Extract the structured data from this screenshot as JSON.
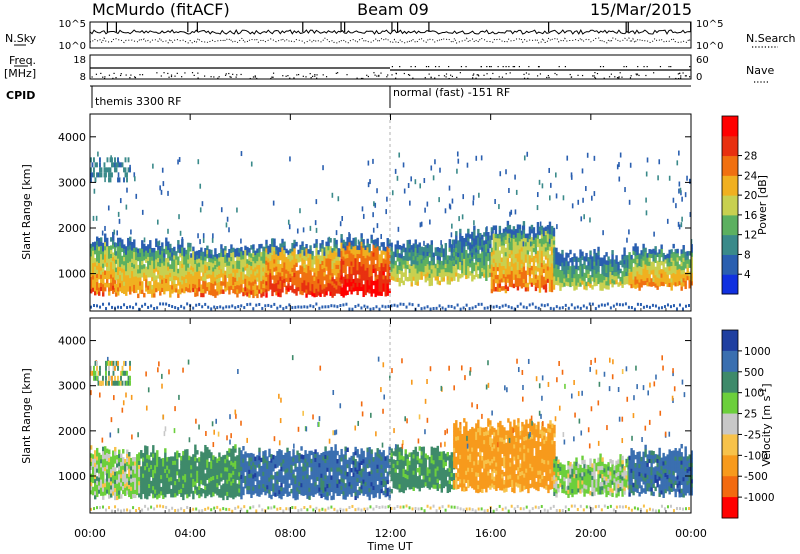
{
  "header": {
    "station": "McMurdo (fitACF)",
    "beam": "Beam 09",
    "date": "15/Mar/2015"
  },
  "top_panel": {
    "nsky_label": "N.Sky",
    "nsky_tick_hi": "10^5",
    "nsky_tick_lo": "10^0",
    "nsearch_label": "N.Search",
    "nsearch_tick_hi": "10^5",
    "nsearch_tick_lo": "10^0",
    "freq_label": "Freq.",
    "freq_unit": "[MHz]",
    "freq_tick_hi": "18",
    "freq_tick_lo": "8",
    "nave_label": "Nave",
    "nave_tick_hi": "60",
    "nave_tick_lo": "0",
    "cpid_label": "CPID",
    "cpid_mode_1": "themis 3300 RF",
    "cpid_mode_2": "normal (fast) -151 RF"
  },
  "chart_data": [
    {
      "type": "heatmap",
      "name": "Power",
      "ylabel": "Slant Range [km]",
      "ylim": [
        180,
        4500
      ],
      "yticks": [
        1000,
        2000,
        3000,
        4000
      ],
      "xlim": [
        0,
        24
      ],
      "xticks": [
        "00:00",
        "04:00",
        "08:00",
        "12:00",
        "16:00",
        "20:00",
        "00:00"
      ],
      "colorbar_label": "Power [dB]",
      "colorbar_ticks": [
        "4",
        "8",
        "12",
        "16",
        "20",
        "24",
        "28"
      ],
      "colorbar_colors": [
        "#1030e0",
        "#2a5fb0",
        "#3a8a8a",
        "#5cb060",
        "#c8d050",
        "#f0b020",
        "#f07010",
        "#e83010",
        "#ff0000"
      ],
      "echo_bands": [
        {
          "t0": 0.0,
          "t1": 1.0,
          "range_lo": 550,
          "range_hi": 1700,
          "mean_db": 20
        },
        {
          "t0": 1.0,
          "t1": 4.0,
          "range_lo": 550,
          "range_hi": 1600,
          "mean_db": 18
        },
        {
          "t0": 4.0,
          "t1": 7.0,
          "range_lo": 550,
          "range_hi": 1500,
          "mean_db": 20
        },
        {
          "t0": 7.0,
          "t1": 10.0,
          "range_lo": 550,
          "range_hi": 1600,
          "mean_db": 24
        },
        {
          "t0": 10.0,
          "t1": 12.0,
          "range_lo": 550,
          "range_hi": 1700,
          "mean_db": 28
        },
        {
          "t0": 12.0,
          "t1": 14.5,
          "range_lo": 800,
          "range_hi": 1600,
          "mean_db": 14
        },
        {
          "t0": 14.5,
          "t1": 16.0,
          "range_lo": 900,
          "range_hi": 1900,
          "mean_db": 12
        },
        {
          "t0": 16.0,
          "t1": 18.5,
          "range_lo": 650,
          "range_hi": 2000,
          "mean_db": 20
        },
        {
          "t0": 18.5,
          "t1": 21.5,
          "range_lo": 700,
          "range_hi": 1400,
          "mean_db": 12
        },
        {
          "t0": 21.5,
          "t1": 24.0,
          "range_lo": 700,
          "range_hi": 1500,
          "mean_db": 18
        }
      ]
    },
    {
      "type": "heatmap",
      "name": "Velocity",
      "ylabel": "Slant Range [km]",
      "ylim": [
        180,
        4500
      ],
      "yticks": [
        1000,
        2000,
        3000,
        4000
      ],
      "xlim": [
        0,
        24
      ],
      "xticks": [
        "00:00",
        "04:00",
        "08:00",
        "12:00",
        "16:00",
        "20:00",
        "00:00"
      ],
      "xlabel": "Time UT",
      "colorbar_label": "Velocity [m s^-1]",
      "colorbar_ticks": [
        "1000",
        "500",
        "100",
        "25",
        "-25",
        "-100",
        "-500",
        "-1000"
      ],
      "colorbar_colors": [
        "#1f3fa0",
        "#3a6fb0",
        "#3e8a6a",
        "#6ccf3c",
        "#c8c8c8",
        "#f7c24a",
        "#f79a1c",
        "#f26a10",
        "#ff0000"
      ],
      "echo_bands": [
        {
          "t0": 0.0,
          "t1": 2.0,
          "range_lo": 550,
          "range_hi": 1500,
          "mean_velocity": 25
        },
        {
          "t0": 2.0,
          "t1": 6.0,
          "range_lo": 550,
          "range_hi": 1500,
          "mean_velocity": 100
        },
        {
          "t0": 6.0,
          "t1": 12.0,
          "range_lo": 550,
          "range_hi": 1500,
          "mean_velocity": 500
        },
        {
          "t0": 12.0,
          "t1": 14.5,
          "range_lo": 700,
          "range_hi": 1500,
          "mean_velocity": 100
        },
        {
          "t0": 14.5,
          "t1": 18.5,
          "range_lo": 700,
          "range_hi": 2100,
          "mean_velocity": -100
        },
        {
          "t0": 18.5,
          "t1": 21.5,
          "range_lo": 600,
          "range_hi": 1300,
          "mean_velocity": 25
        },
        {
          "t0": 21.5,
          "t1": 24.0,
          "range_lo": 600,
          "range_hi": 1500,
          "mean_velocity": 500
        }
      ]
    }
  ]
}
